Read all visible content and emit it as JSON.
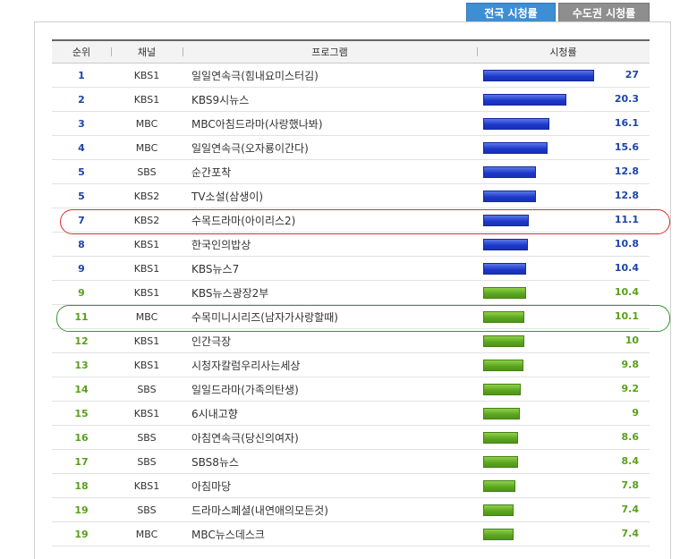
{
  "tabs": {
    "active": "전국 시청률",
    "inactive": "수도권 시청률"
  },
  "columns": {
    "rank": "순위",
    "channel": "채널",
    "program": "프로그램",
    "rating": "시청률"
  },
  "colors": {
    "blue_bar": "#1c36c8",
    "green_bar": "#5aa51e",
    "highlight_red": "#d43030",
    "highlight_green": "#2e9b2e"
  },
  "highlights": [
    {
      "row": 6,
      "color": "red"
    },
    {
      "row": 10,
      "color": "green"
    }
  ],
  "chart_data": {
    "type": "bar",
    "xlim": [
      0,
      27
    ],
    "rows": [
      {
        "rank": "1",
        "channel": "KBS1",
        "program": "일일연속극(힘내요미스터김)",
        "rating": 27,
        "color": "blue"
      },
      {
        "rank": "2",
        "channel": "KBS1",
        "program": "KBS9시뉴스",
        "rating": 20.3,
        "color": "blue"
      },
      {
        "rank": "3",
        "channel": "MBC",
        "program": "MBC아침드라마(사랑했나봐)",
        "rating": 16.1,
        "color": "blue"
      },
      {
        "rank": "4",
        "channel": "MBC",
        "program": "일일연속극(오자룡이간다)",
        "rating": 15.6,
        "color": "blue"
      },
      {
        "rank": "5",
        "channel": "SBS",
        "program": "순간포착",
        "rating": 12.8,
        "color": "blue"
      },
      {
        "rank": "5",
        "channel": "KBS2",
        "program": "TV소설(삼생이)",
        "rating": 12.8,
        "color": "blue"
      },
      {
        "rank": "7",
        "channel": "KBS2",
        "program": "수목드라마(아이리스2)",
        "rating": 11.1,
        "color": "blue"
      },
      {
        "rank": "8",
        "channel": "KBS1",
        "program": "한국인의밥상",
        "rating": 10.8,
        "color": "blue"
      },
      {
        "rank": "9",
        "channel": "KBS1",
        "program": "KBS뉴스7",
        "rating": 10.4,
        "color": "blue"
      },
      {
        "rank": "9",
        "channel": "KBS1",
        "program": "KBS뉴스광장2부",
        "rating": 10.4,
        "color": "green"
      },
      {
        "rank": "11",
        "channel": "MBC",
        "program": "수목미니시리즈(남자가사랑할때)",
        "rating": 10.1,
        "color": "green"
      },
      {
        "rank": "12",
        "channel": "KBS1",
        "program": "인간극장",
        "rating": 10,
        "color": "green"
      },
      {
        "rank": "13",
        "channel": "KBS1",
        "program": "시청자칼럼우리사는세상",
        "rating": 9.8,
        "color": "green"
      },
      {
        "rank": "14",
        "channel": "SBS",
        "program": "일일드라마(가족의탄생)",
        "rating": 9.2,
        "color": "green"
      },
      {
        "rank": "15",
        "channel": "KBS1",
        "program": "6시내고향",
        "rating": 9,
        "color": "green"
      },
      {
        "rank": "16",
        "channel": "SBS",
        "program": "아침연속극(당신의여자)",
        "rating": 8.6,
        "color": "green"
      },
      {
        "rank": "17",
        "channel": "SBS",
        "program": "SBS8뉴스",
        "rating": 8.4,
        "color": "green"
      },
      {
        "rank": "18",
        "channel": "KBS1",
        "program": "아침마당",
        "rating": 7.8,
        "color": "green"
      },
      {
        "rank": "19",
        "channel": "SBS",
        "program": "드라마스페셜(내연애의모든것)",
        "rating": 7.4,
        "color": "green"
      },
      {
        "rank": "19",
        "channel": "MBC",
        "program": "MBC뉴스데스크",
        "rating": 7.4,
        "color": "green"
      }
    ]
  }
}
